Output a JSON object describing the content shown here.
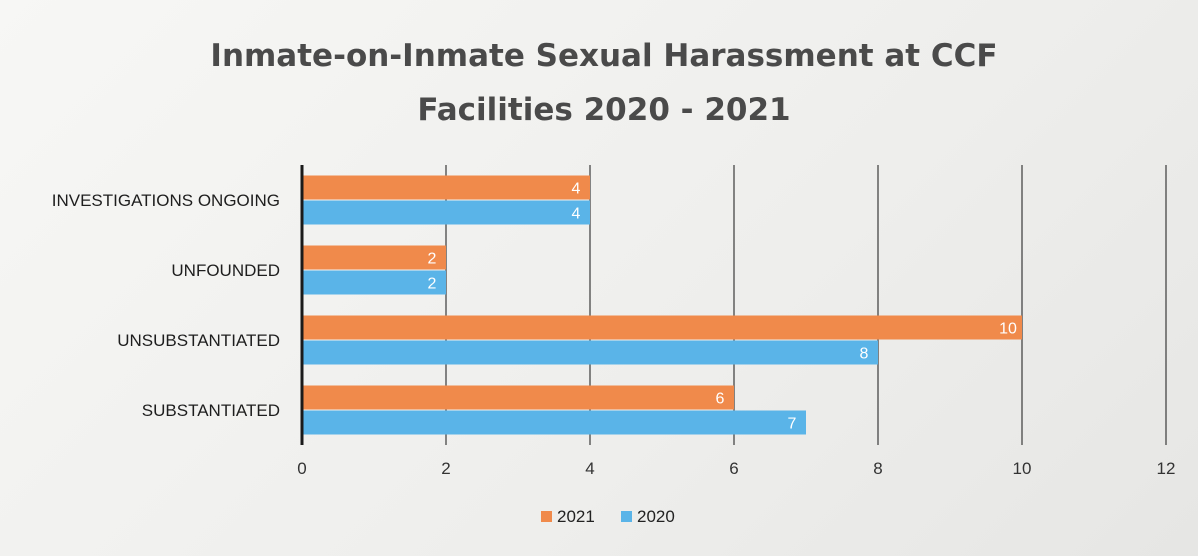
{
  "chart_data": {
    "type": "bar",
    "orientation": "horizontal",
    "title": "Inmate-on-Inmate Sexual Harassment at CCF Facilities 2020 - 2021",
    "title_lines": [
      "Inmate-on-Inmate Sexual Harassment at CCF",
      "Facilities 2020 - 2021"
    ],
    "categories": [
      "INVESTIGATIONS ONGOING",
      "UNFOUNDED",
      "UNSUBSTANTIATED",
      "SUBSTANTIATED"
    ],
    "series": [
      {
        "name": "2021",
        "color": "#f08a4b",
        "values": [
          4,
          2,
          10,
          6
        ]
      },
      {
        "name": "2020",
        "color": "#5ab4e8",
        "values": [
          4,
          2,
          8,
          7
        ]
      }
    ],
    "xlim": [
      0,
      12
    ],
    "xticks": [
      "0",
      "2",
      "4",
      "6",
      "8",
      "10",
      "12"
    ],
    "xtick_values": [
      0,
      2,
      4,
      6,
      8,
      10,
      12
    ],
    "grid": true,
    "legend_position": "bottom-center",
    "xlabel": "",
    "ylabel": ""
  }
}
